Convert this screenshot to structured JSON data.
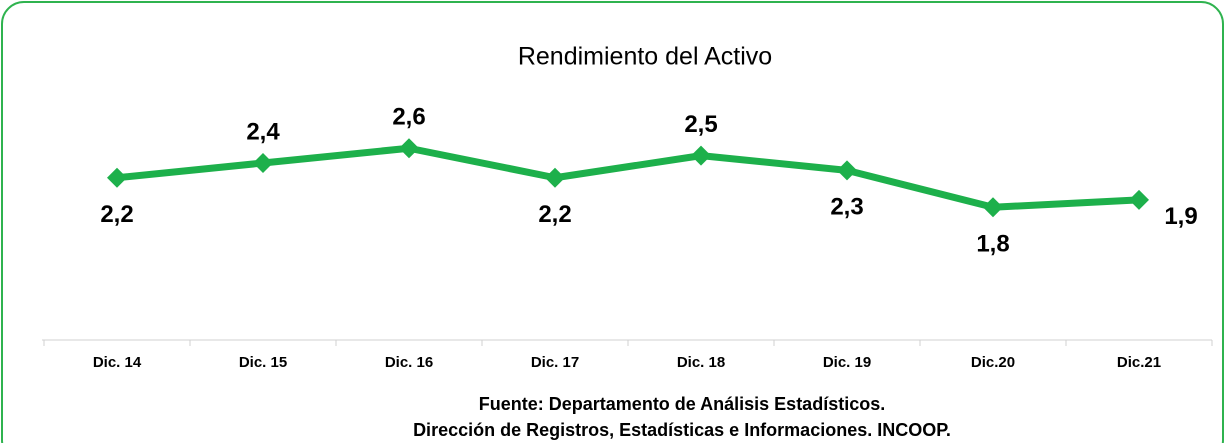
{
  "chart_data": {
    "type": "line",
    "title": "Rendimiento del Activo",
    "categories": [
      "Dic. 14",
      "Dic. 15",
      "Dic. 16",
      "Dic. 17",
      "Dic. 18",
      "Dic. 19",
      "Dic.20",
      "Dic.21"
    ],
    "series": [
      {
        "name": "Rendimiento del Activo",
        "color": "#1db04b",
        "values": [
          2.2,
          2.4,
          2.6,
          2.2,
          2.5,
          2.3,
          1.8,
          1.9
        ],
        "value_labels": [
          "2,2",
          "2,4",
          "2,6",
          "2,2",
          "2,5",
          "2,3",
          "1,8",
          "1,9"
        ]
      }
    ],
    "ylim": [
      0,
      3.2
    ],
    "annotations": [
      "Fuente: Departamento de Análisis Estadísticos.",
      "Dirección de Registros, Estadísticas e Informaciones. INCOOP."
    ]
  }
}
